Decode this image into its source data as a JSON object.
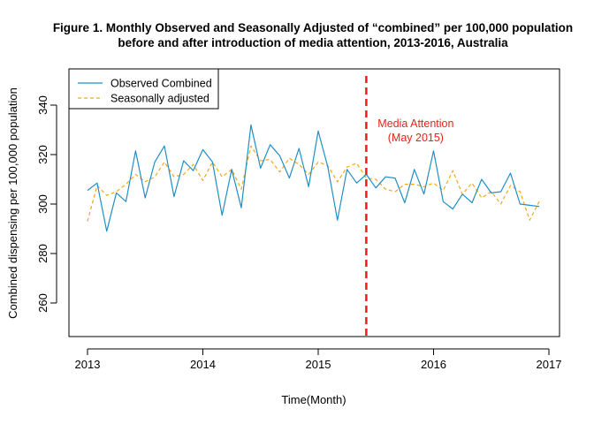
{
  "chart_data": {
    "type": "line",
    "title_line1": "Figure 1. Monthly Observed and Seasonally Adjusted of “combined” per 100,000 population",
    "title_line2": "before and after introduction of media attention, 2013-2016, Australia",
    "xlabel": "Time(Month)",
    "ylabel": "Combined dispensing per 100,000 population",
    "xlim": [
      2013,
      2017
    ],
    "ylim": [
      245,
      350
    ],
    "x_ticks": [
      2013,
      2014,
      2015,
      2016,
      2017
    ],
    "x_tick_labels": [
      "2013",
      "2014",
      "2015",
      "2016",
      "2017"
    ],
    "y_ticks": [
      260,
      280,
      300,
      320,
      340
    ],
    "y_tick_labels": [
      "260",
      "280",
      "300",
      "320",
      "340"
    ],
    "grid": false,
    "legend_position": "top-left",
    "series": [
      {
        "name": "Observed Combined",
        "color": "#1f8fc4",
        "style": "solid",
        "values": [
          305.5,
          308.5,
          289,
          304.5,
          301,
          321.5,
          302.5,
          317,
          323.5,
          303,
          317.5,
          313.5,
          322,
          317,
          295.5,
          314,
          298.5,
          332,
          314.5,
          324,
          319.5,
          310.5,
          322.5,
          307,
          329.5,
          315,
          293.5,
          314,
          308.5,
          312,
          306.5,
          311,
          310.5,
          300.5,
          314,
          304,
          321.5,
          301,
          298,
          304,
          300.5,
          310,
          304.5,
          305,
          312.5,
          300,
          299.5,
          299
        ]
      },
      {
        "name": "Seasonally adjusted",
        "color": "#f5a623",
        "style": "dashed",
        "values": [
          293,
          307.5,
          303.5,
          305,
          308,
          312,
          309,
          311,
          317,
          311,
          312,
          316,
          309.5,
          317,
          311,
          314,
          306,
          323.5,
          317.5,
          318,
          313,
          318.5,
          316,
          312,
          317,
          315.5,
          309,
          315,
          316.5,
          310.5,
          310,
          306,
          305,
          308,
          308,
          307,
          308.5,
          305.5,
          313.5,
          304,
          308.5,
          302.5,
          305,
          300,
          307.5,
          305,
          293.5,
          301
        ]
      }
    ],
    "vline": {
      "x": 2015.4167,
      "color": "#e8211c",
      "label_line1": "Media Attention",
      "label_line2": "(May 2015)"
    }
  }
}
